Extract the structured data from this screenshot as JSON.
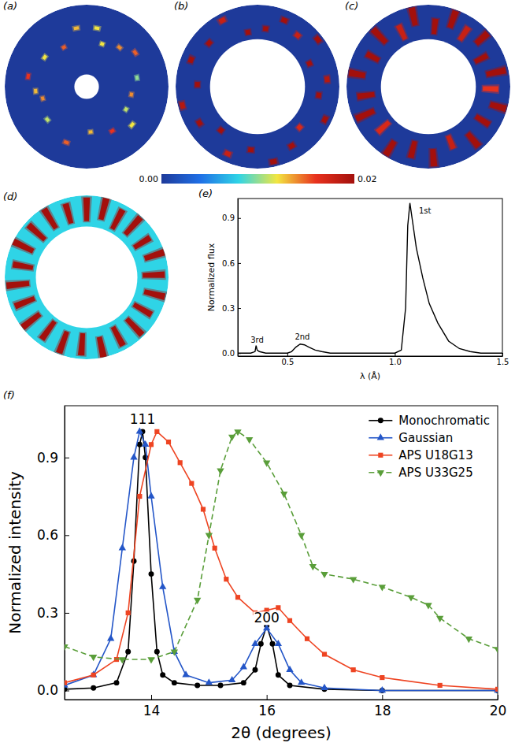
{
  "chart_data": [
    {
      "type": "image",
      "label": "(a)",
      "inner_radius": 0.15,
      "background": 0,
      "spots": [
        [
          20,
          0.55,
          0.56,
          0.012
        ],
        [
          55,
          0.72,
          0.73,
          0.015
        ],
        [
          80,
          0.62,
          0.63,
          0.01
        ],
        [
          100,
          0.55,
          0.56,
          0.014
        ],
        [
          130,
          0.72,
          0.73,
          0.012
        ],
        [
          150,
          0.62,
          0.63,
          0.016
        ],
        [
          175,
          0.55,
          0.56,
          0.013
        ],
        [
          200,
          0.72,
          0.73,
          0.015
        ],
        [
          230,
          0.62,
          0.63,
          0.011
        ],
        [
          255,
          0.55,
          0.56,
          0.014
        ],
        [
          280,
          0.72,
          0.73,
          0.016
        ],
        [
          305,
          0.62,
          0.63,
          0.012
        ],
        [
          330,
          0.55,
          0.56,
          0.015
        ],
        [
          350,
          0.72,
          0.73,
          0.013
        ],
        [
          10,
          0.72,
          0.73,
          0.012
        ],
        [
          120,
          0.55,
          0.56,
          0.011
        ],
        [
          265,
          0.62,
          0.63,
          0.013
        ],
        [
          40,
          0.62,
          0.63,
          0.014
        ]
      ]
    },
    {
      "type": "image",
      "label": "(b)",
      "inner_radius": 0.58,
      "background": 0,
      "spots": [
        [
          8,
          0.7,
          0.73,
          0.02
        ],
        [
          22,
          0.86,
          0.89,
          0.02
        ],
        [
          38,
          0.78,
          0.81,
          0.018
        ],
        [
          52,
          0.92,
          0.95,
          0.02
        ],
        [
          66,
          0.68,
          0.71,
          0.02
        ],
        [
          84,
          0.84,
          0.87,
          0.019
        ],
        [
          98,
          0.74,
          0.77,
          0.02
        ],
        [
          116,
          0.9,
          0.93,
          0.02
        ],
        [
          134,
          0.7,
          0.73,
          0.017
        ],
        [
          150,
          0.82,
          0.85,
          0.02
        ],
        [
          168,
          0.92,
          0.95,
          0.02
        ],
        [
          186,
          0.76,
          0.79,
          0.02
        ],
        [
          204,
          0.88,
          0.91,
          0.018
        ],
        [
          220,
          0.68,
          0.71,
          0.02
        ],
        [
          238,
          0.82,
          0.85,
          0.02
        ],
        [
          256,
          0.93,
          0.96,
          0.019
        ],
        [
          272,
          0.72,
          0.75,
          0.02
        ],
        [
          292,
          0.86,
          0.89,
          0.02
        ],
        [
          312,
          0.78,
          0.81,
          0.02
        ],
        [
          332,
          0.9,
          0.93,
          0.018
        ],
        [
          350,
          0.66,
          0.69,
          0.02
        ]
      ]
    },
    {
      "type": "image",
      "label": "(c)",
      "inner_radius": 0.58,
      "background": 0,
      "spots": [
        [
          6,
          0.66,
          0.82,
          0.02
        ],
        [
          20,
          0.78,
          0.97,
          0.02
        ],
        [
          34,
          0.7,
          0.86,
          0.018
        ],
        [
          48,
          0.8,
          0.96,
          0.02
        ],
        [
          62,
          0.66,
          0.8,
          0.02
        ],
        [
          78,
          0.74,
          0.95,
          0.02
        ],
        [
          92,
          0.68,
          0.84,
          0.016
        ],
        [
          106,
          0.8,
          0.97,
          0.02
        ],
        [
          122,
          0.7,
          0.86,
          0.02
        ],
        [
          140,
          0.76,
          0.94,
          0.02
        ],
        [
          158,
          0.66,
          0.8,
          0.018
        ],
        [
          176,
          0.78,
          0.96,
          0.02
        ],
        [
          194,
          0.7,
          0.88,
          0.02
        ],
        [
          212,
          0.8,
          0.97,
          0.02
        ],
        [
          228,
          0.66,
          0.82,
          0.017
        ],
        [
          246,
          0.74,
          0.95,
          0.02
        ],
        [
          262,
          0.68,
          0.86,
          0.02
        ],
        [
          280,
          0.8,
          0.97,
          0.02
        ],
        [
          298,
          0.7,
          0.84,
          0.02
        ],
        [
          316,
          0.76,
          0.96,
          0.02
        ],
        [
          334,
          0.66,
          0.82,
          0.018
        ],
        [
          348,
          0.78,
          0.97,
          0.02
        ]
      ]
    },
    {
      "type": "image",
      "label": "(d)",
      "inner_radius": 0.62,
      "background": 0.008,
      "spots": [
        [
          0,
          0.7,
          0.96,
          0.02
        ],
        [
          14,
          0.74,
          0.98,
          0.02
        ],
        [
          28,
          0.68,
          0.92,
          0.02
        ],
        [
          42,
          0.72,
          0.97,
          0.02
        ],
        [
          58,
          0.7,
          0.9,
          0.02
        ],
        [
          72,
          0.76,
          0.98,
          0.02
        ],
        [
          88,
          0.7,
          0.94,
          0.02
        ],
        [
          104,
          0.74,
          0.97,
          0.02
        ],
        [
          120,
          0.68,
          0.9,
          0.02
        ],
        [
          136,
          0.72,
          0.96,
          0.02
        ],
        [
          152,
          0.7,
          0.93,
          0.02
        ],
        [
          168,
          0.76,
          0.98,
          0.02
        ],
        [
          184,
          0.7,
          0.94,
          0.02
        ],
        [
          200,
          0.72,
          0.97,
          0.02
        ],
        [
          216,
          0.68,
          0.92,
          0.02
        ],
        [
          232,
          0.74,
          0.98,
          0.02
        ],
        [
          248,
          0.7,
          0.93,
          0.02
        ],
        [
          264,
          0.72,
          0.97,
          0.02
        ],
        [
          280,
          0.68,
          0.9,
          0.02
        ],
        [
          296,
          0.74,
          0.98,
          0.02
        ],
        [
          312,
          0.7,
          0.94,
          0.02
        ],
        [
          328,
          0.72,
          0.97,
          0.02
        ],
        [
          344,
          0.7,
          0.92,
          0.02
        ]
      ]
    },
    {
      "type": "colorbar",
      "range": [
        0,
        0.02
      ],
      "ticks": [
        {
          "value": 0,
          "label": "0.00"
        },
        {
          "value": 0.02,
          "label": "0.02"
        }
      ]
    },
    {
      "type": "line",
      "label": "(e)",
      "xlabel": "λ (Å)",
      "ylabel": "Normalized flux",
      "xlim": [
        0.27,
        1.5
      ],
      "ylim": [
        -0.02,
        1.03
      ],
      "xticks": [
        {
          "value": 0.5,
          "label": "0.5"
        },
        {
          "value": 1.0,
          "label": "1.0"
        },
        {
          "value": 1.5,
          "label": "1.5"
        }
      ],
      "yticks": [
        {
          "value": 0,
          "label": "0.0"
        },
        {
          "value": 0.3,
          "label": "0.3"
        },
        {
          "value": 0.6,
          "label": "0.6"
        },
        {
          "value": 0.9,
          "label": "0.9"
        }
      ],
      "color": "#000000",
      "marker": "none",
      "line_style": "solid",
      "x": [
        0.27,
        0.33,
        0.35,
        0.355,
        0.36,
        0.37,
        0.4,
        0.5,
        0.52,
        0.54,
        0.56,
        0.58,
        0.6,
        0.63,
        0.66,
        0.7,
        1.0,
        1.03,
        1.05,
        1.06,
        1.07,
        1.08,
        1.1,
        1.13,
        1.16,
        1.2,
        1.25,
        1.3,
        1.35,
        1.4,
        1.5
      ],
      "values": [
        0,
        0,
        0.01,
        0.05,
        0.02,
        0.01,
        0,
        0,
        0.01,
        0.04,
        0.06,
        0.055,
        0.04,
        0.02,
        0.01,
        0,
        0,
        0.02,
        0.3,
        0.85,
        1.0,
        0.9,
        0.7,
        0.5,
        0.33,
        0.2,
        0.08,
        0.03,
        0.01,
        0,
        0
      ],
      "annotations": [
        {
          "text": "1st",
          "x": 1.14,
          "y": 0.93
        },
        {
          "text": "2nd",
          "x": 0.57,
          "y": 0.09
        },
        {
          "text": "3rd",
          "x": 0.36,
          "y": 0.07
        }
      ]
    },
    {
      "type": "line",
      "label": "(f)",
      "xlabel": "2θ (degrees)",
      "ylabel": "Normalized intensity",
      "xlim": [
        12.5,
        20
      ],
      "ylim": [
        -0.035,
        1.1
      ],
      "xticks": [
        14,
        16,
        18,
        20
      ],
      "yticks": [
        {
          "value": 0,
          "label": "0.0"
        },
        {
          "value": 0.3,
          "label": "0.3"
        },
        {
          "value": 0.6,
          "label": "0.6"
        },
        {
          "value": 0.9,
          "label": "0.9"
        }
      ],
      "legend": "top-right",
      "series": [
        {
          "name": "Monochromatic",
          "color": "#000000",
          "marker": "circle",
          "line_style": "solid",
          "x": [
            12.5,
            13.0,
            13.4,
            13.6,
            13.7,
            13.8,
            13.85,
            13.9,
            14.0,
            14.1,
            14.2,
            14.4,
            14.8,
            15.2,
            15.6,
            15.8,
            15.9,
            16.0,
            16.1,
            16.2,
            16.4,
            17,
            18,
            20
          ],
          "y": [
            0.005,
            0.01,
            0.03,
            0.15,
            0.5,
            0.95,
            1.0,
            0.9,
            0.45,
            0.15,
            0.06,
            0.03,
            0.02,
            0.02,
            0.03,
            0.08,
            0.18,
            0.25,
            0.18,
            0.06,
            0.02,
            0.005,
            0,
            0
          ]
        },
        {
          "name": "Gaussian",
          "color": "#2456c8",
          "marker": "triangle-up",
          "line_style": "solid",
          "x": [
            12.5,
            13.0,
            13.3,
            13.5,
            13.7,
            13.8,
            13.9,
            14.0,
            14.2,
            14.4,
            14.6,
            15.0,
            15.4,
            15.6,
            15.8,
            16.0,
            16.2,
            16.4,
            16.6,
            17,
            18,
            20
          ],
          "y": [
            0.02,
            0.06,
            0.2,
            0.55,
            0.9,
            1.0,
            0.95,
            0.75,
            0.4,
            0.15,
            0.06,
            0.03,
            0.04,
            0.09,
            0.18,
            0.24,
            0.18,
            0.08,
            0.03,
            0.01,
            0,
            0
          ]
        },
        {
          "name": "APS U18G13",
          "color": "#ee4422",
          "marker": "square",
          "line_style": "solid",
          "x": [
            12.5,
            13.0,
            13.4,
            13.6,
            13.8,
            14.0,
            14.1,
            14.3,
            14.5,
            14.7,
            14.9,
            15.1,
            15.3,
            15.5,
            15.8,
            16.0,
            16.2,
            16.4,
            16.7,
            17.0,
            17.5,
            18,
            19,
            20
          ],
          "y": [
            0.03,
            0.06,
            0.12,
            0.3,
            0.75,
            0.95,
            1.0,
            0.96,
            0.88,
            0.8,
            0.7,
            0.55,
            0.43,
            0.36,
            0.3,
            0.31,
            0.32,
            0.27,
            0.2,
            0.14,
            0.08,
            0.05,
            0.02,
            0.005
          ]
        },
        {
          "name": "APS U33G25",
          "color": "#5a9e3a",
          "marker": "triangle-down",
          "line_style": "dashed",
          "x": [
            12.5,
            13.0,
            13.5,
            14.0,
            14.4,
            14.8,
            15.0,
            15.2,
            15.4,
            15.5,
            15.7,
            16.0,
            16.3,
            16.6,
            16.8,
            17.0,
            17.5,
            18.0,
            18.5,
            18.8,
            19.0,
            19.5,
            20
          ],
          "y": [
            0.17,
            0.13,
            0.12,
            0.12,
            0.15,
            0.35,
            0.6,
            0.85,
            0.98,
            1.0,
            0.97,
            0.88,
            0.76,
            0.6,
            0.48,
            0.45,
            0.43,
            0.4,
            0.36,
            0.33,
            0.28,
            0.2,
            0.16
          ]
        }
      ],
      "annotations": [
        {
          "text": "111",
          "x": 13.85,
          "y": 1.03
        },
        {
          "text": "200",
          "x": 16.0,
          "y": 0.262
        }
      ]
    }
  ]
}
